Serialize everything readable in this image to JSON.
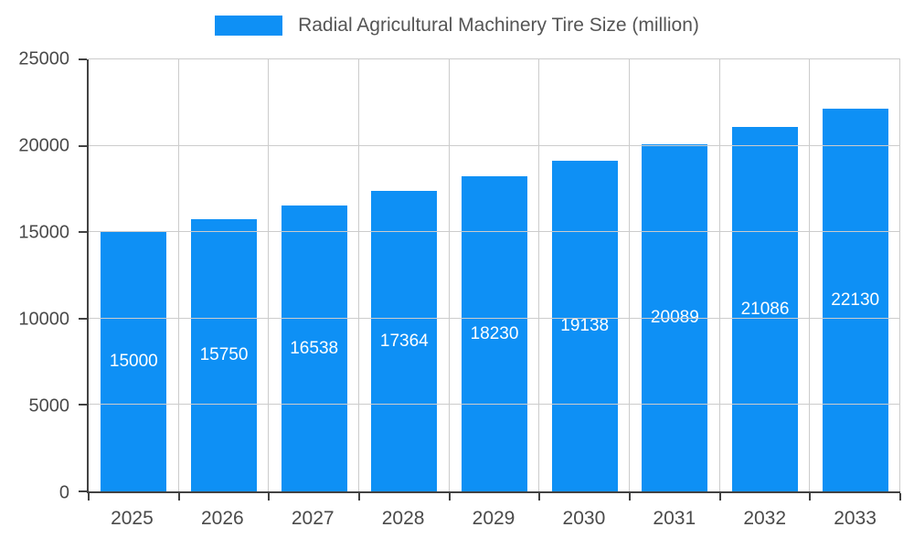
{
  "chart_data": {
    "type": "bar",
    "title": "Radial Agricultural Machinery Tire Size (million)",
    "categories": [
      "2025",
      "2026",
      "2027",
      "2028",
      "2029",
      "2030",
      "2031",
      "2032",
      "2033"
    ],
    "values": [
      15000,
      15750,
      16538,
      17364,
      18230,
      19138,
      20089,
      21086,
      22130
    ],
    "xlabel": "",
    "ylabel": "",
    "ylim": [
      0,
      25000
    ],
    "y_ticks": [
      0,
      5000,
      10000,
      15000,
      20000,
      25000
    ],
    "grid": true,
    "legend_position": "top",
    "bar_color": "#0e90f5",
    "value_label_color": "#ffffff",
    "axis_text_color": "#4a4a4a"
  },
  "legend": {
    "label": "Radial Agricultural Machinery Tire Size (million)"
  }
}
